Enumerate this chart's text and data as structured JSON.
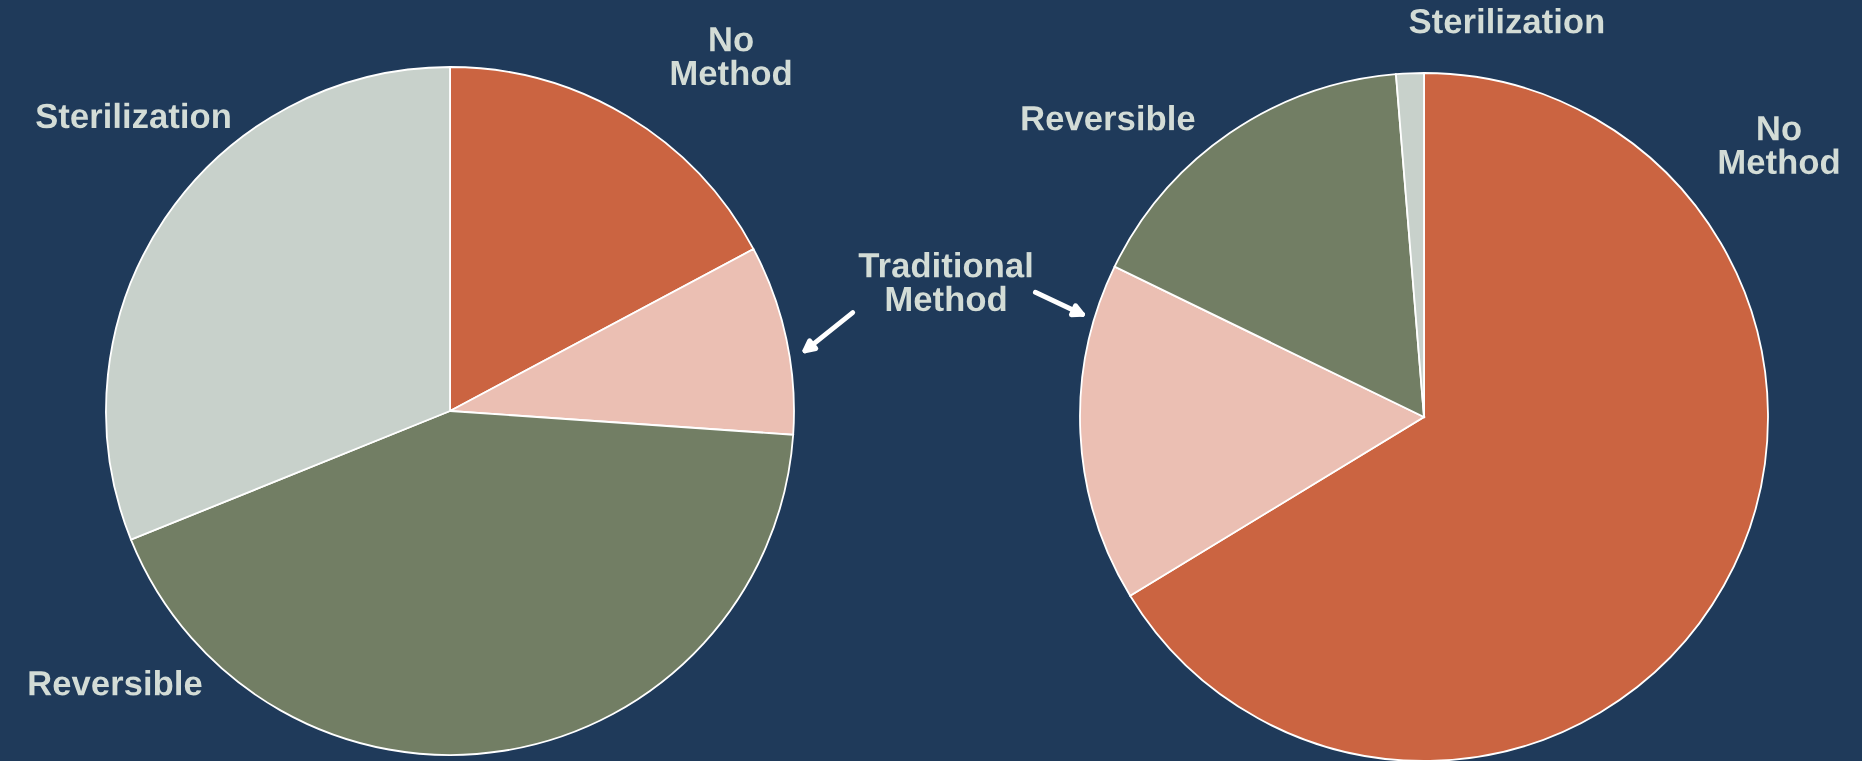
{
  "chart_data": [
    {
      "type": "pie",
      "categories": [
        "No\nMethod",
        "Traditional\nMethod",
        "Reversible",
        "Sterilization"
      ],
      "values": [
        17.2,
        8.9,
        42.8,
        31.1
      ],
      "colors": [
        "#cb6441",
        "#ebbfb3",
        "#727e64",
        "#c8d1cb"
      ]
    },
    {
      "type": "pie",
      "categories": [
        "No\nMethod",
        null,
        "Reversible",
        "Sterilization"
      ],
      "values": [
        66.3,
        15.9,
        16.5,
        1.3
      ],
      "colors": [
        "#cb6441",
        "#ebbfb3",
        "#727e64",
        "#c8d1cb"
      ]
    }
  ]
}
